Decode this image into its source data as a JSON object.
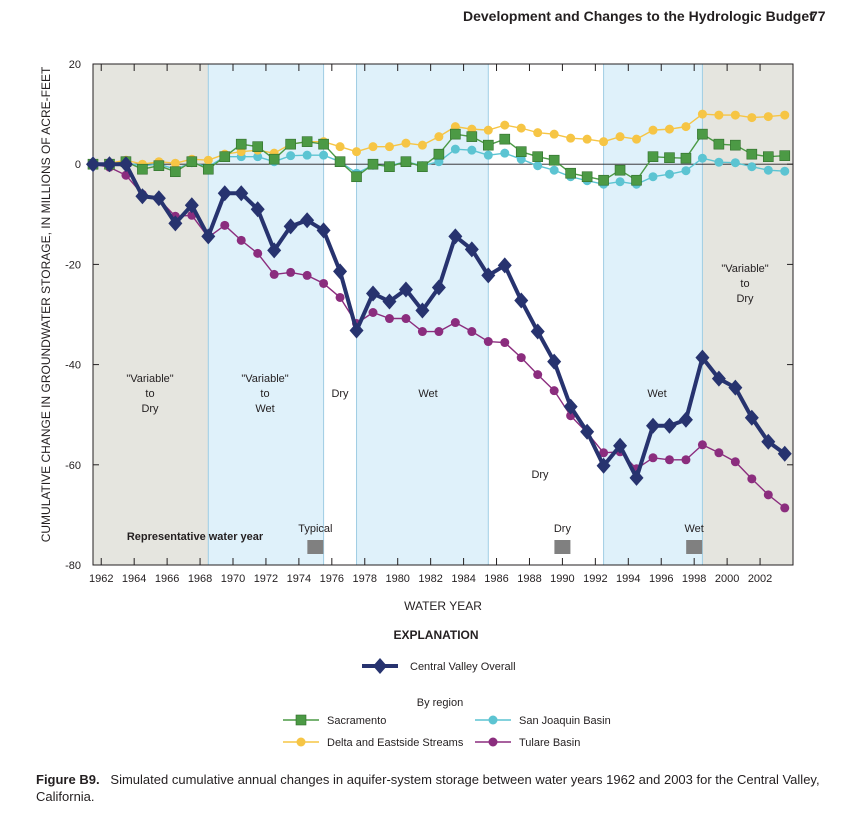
{
  "header": {
    "title": "Development and Changes to the Hydrologic Budget",
    "page": "77"
  },
  "chart_data": {
    "type": "line",
    "ylabel": "CUMULATIVE CHANGE IN GROUNDWATER STORAGE, IN MILLIONS OF ACRE-FEET",
    "xlabel": "WATER YEAR",
    "xlim": [
      1961.5,
      2004
    ],
    "ylim": [
      -80,
      20
    ],
    "xticks": [
      1962,
      1964,
      1966,
      1968,
      1970,
      1972,
      1974,
      1976,
      1978,
      1980,
      1982,
      1984,
      1986,
      1988,
      1990,
      1992,
      1994,
      1996,
      1998,
      2000,
      2002
    ],
    "yticks": [
      20,
      0,
      -20,
      -40,
      -60,
      -80
    ],
    "x": [
      1961.5,
      1962.5,
      1963.5,
      1964.5,
      1965.5,
      1966.5,
      1967.5,
      1968.5,
      1969.5,
      1970.5,
      1971.5,
      1972.5,
      1973.5,
      1974.5,
      1975.5,
      1976.5,
      1977.5,
      1978.5,
      1979.5,
      1980.5,
      1981.5,
      1982.5,
      1983.5,
      1984.5,
      1985.5,
      1986.5,
      1987.5,
      1988.5,
      1989.5,
      1990.5,
      1991.5,
      1992.5,
      1993.5,
      1994.5,
      1995.5,
      1996.5,
      1997.5,
      1998.5,
      1999.5,
      2000.5,
      2001.5,
      2002.5,
      2003.5
    ],
    "series": [
      {
        "name": "Central Valley Overall",
        "color": "#27336f",
        "marker": "diamond",
        "values": [
          0,
          0,
          0,
          -6.4,
          -6.8,
          -11.8,
          -8.2,
          -14.4,
          -5.8,
          -5.8,
          -9,
          -17.2,
          -12.4,
          -11.2,
          -13.2,
          -21.4,
          -33.2,
          -25.8,
          -27.4,
          -25,
          -29.2,
          -24.6,
          -14.4,
          -17,
          -22.2,
          -20.2,
          -27.2,
          -33.4,
          -39.4,
          -48.4,
          -53.4,
          -60.2,
          -56.2,
          -62.6,
          -52.2,
          -52.2,
          -51,
          -38.6,
          -42.8,
          -44.6,
          -50.6,
          -55.4,
          -57.8
        ]
      },
      {
        "name": "Sacramento",
        "color": "#4c9a45",
        "marker": "square",
        "values": [
          0,
          0,
          0.5,
          -1,
          -0.3,
          -1.5,
          0.5,
          -1,
          1.5,
          4,
          3.5,
          1,
          4,
          4.5,
          4,
          0.5,
          -2.5,
          0,
          -0.5,
          0.5,
          -0.5,
          2,
          6,
          5.5,
          3.8,
          5,
          2.5,
          1.5,
          0.8,
          -1.8,
          -2.5,
          -3.2,
          -1.2,
          -3.2,
          1.5,
          1.3,
          1.2,
          6,
          4,
          3.8,
          2,
          1.5,
          1.7
        ]
      },
      {
        "name": "Delta and Eastside Streams",
        "color": "#f6c545",
        "marker": "circle",
        "values": [
          0,
          0.2,
          0.8,
          0,
          0.5,
          0.2,
          1,
          0.8,
          2,
          2.5,
          2.8,
          2.2,
          4,
          4.5,
          4.5,
          3.5,
          2.5,
          3.5,
          3.5,
          4.2,
          3.8,
          5.5,
          7.5,
          7,
          6.8,
          7.8,
          7.2,
          6.3,
          6,
          5.2,
          5,
          4.5,
          5.5,
          5,
          6.8,
          7,
          7.5,
          10,
          9.8,
          9.8,
          9.3,
          9.5,
          9.8
        ]
      },
      {
        "name": "San Joaquin Basin",
        "color": "#5cc4d2",
        "marker": "circle",
        "values": [
          0,
          0,
          0.2,
          -0.3,
          0,
          -1,
          0.3,
          -0.5,
          1.5,
          1.5,
          1.5,
          0.5,
          1.7,
          1.8,
          1.8,
          0.5,
          -1.8,
          -0.2,
          -0.3,
          0.5,
          -0.3,
          0.5,
          3,
          2.8,
          1.8,
          2.2,
          1,
          -0.3,
          -1.2,
          -2.5,
          -3.3,
          -4,
          -3.5,
          -4,
          -2.5,
          -2,
          -1.3,
          1.2,
          0.4,
          0.3,
          -0.5,
          -1.2,
          -1.4
        ]
      },
      {
        "name": "Tulare Basin",
        "color": "#8b2d7e",
        "marker": "circle",
        "values": [
          0,
          -0.6,
          -2.2,
          -6,
          -7,
          -10.4,
          -10.2,
          -14.6,
          -12.2,
          -15.2,
          -17.8,
          -22,
          -21.6,
          -22.2,
          -23.8,
          -26.6,
          -31.8,
          -29.6,
          -30.8,
          -30.8,
          -33.4,
          -33.4,
          -31.6,
          -33.4,
          -35.4,
          -35.6,
          -38.6,
          -42,
          -45.2,
          -50.2,
          -53.6,
          -57.6,
          -57.4,
          -60.8,
          -58.6,
          -59,
          -59,
          -56,
          -57.6,
          -59.4,
          -62.8,
          -66,
          -68.6
        ]
      }
    ],
    "periods": [
      {
        "start": 1961.5,
        "end": 1968.5,
        "color": "#e5e5df",
        "label": [
          "\"Variable\"",
          "to",
          "Dry"
        ]
      },
      {
        "start": 1968.5,
        "end": 1975.5,
        "color": "#dff1fa",
        "label": [
          "\"Variable\"",
          "to",
          "Wet"
        ]
      },
      {
        "start": 1975.5,
        "end": 1977.5,
        "color": "#ffffff",
        "label": [
          "Dry"
        ]
      },
      {
        "start": 1977.5,
        "end": 1985.5,
        "color": "#dff1fa",
        "label": [
          "Wet"
        ]
      },
      {
        "start": 1985.5,
        "end": 1992.5,
        "color": "#ffffff",
        "label": [
          "Dry"
        ]
      },
      {
        "start": 1992.5,
        "end": 1998.5,
        "color": "#dff1fa",
        "label": [
          "Wet"
        ]
      },
      {
        "start": 1998.5,
        "end": 2004,
        "color": "#e5e5df",
        "label": [
          "\"Variable\"",
          "to",
          "Dry"
        ]
      }
    ],
    "representative_title": "Representative water year",
    "representative": [
      {
        "year": 1975,
        "label": "Typical"
      },
      {
        "year": 1990,
        "label": "Dry"
      },
      {
        "year": 1998,
        "label": "Wet"
      }
    ],
    "legend_title": "EXPLANATION",
    "legend_subtitle": "By region"
  },
  "caption": {
    "label": "Figure B9.",
    "text": "Simulated cumulative annual changes in aquifer-system storage between water years 1962 and 2003 for the Central Valley, California."
  }
}
